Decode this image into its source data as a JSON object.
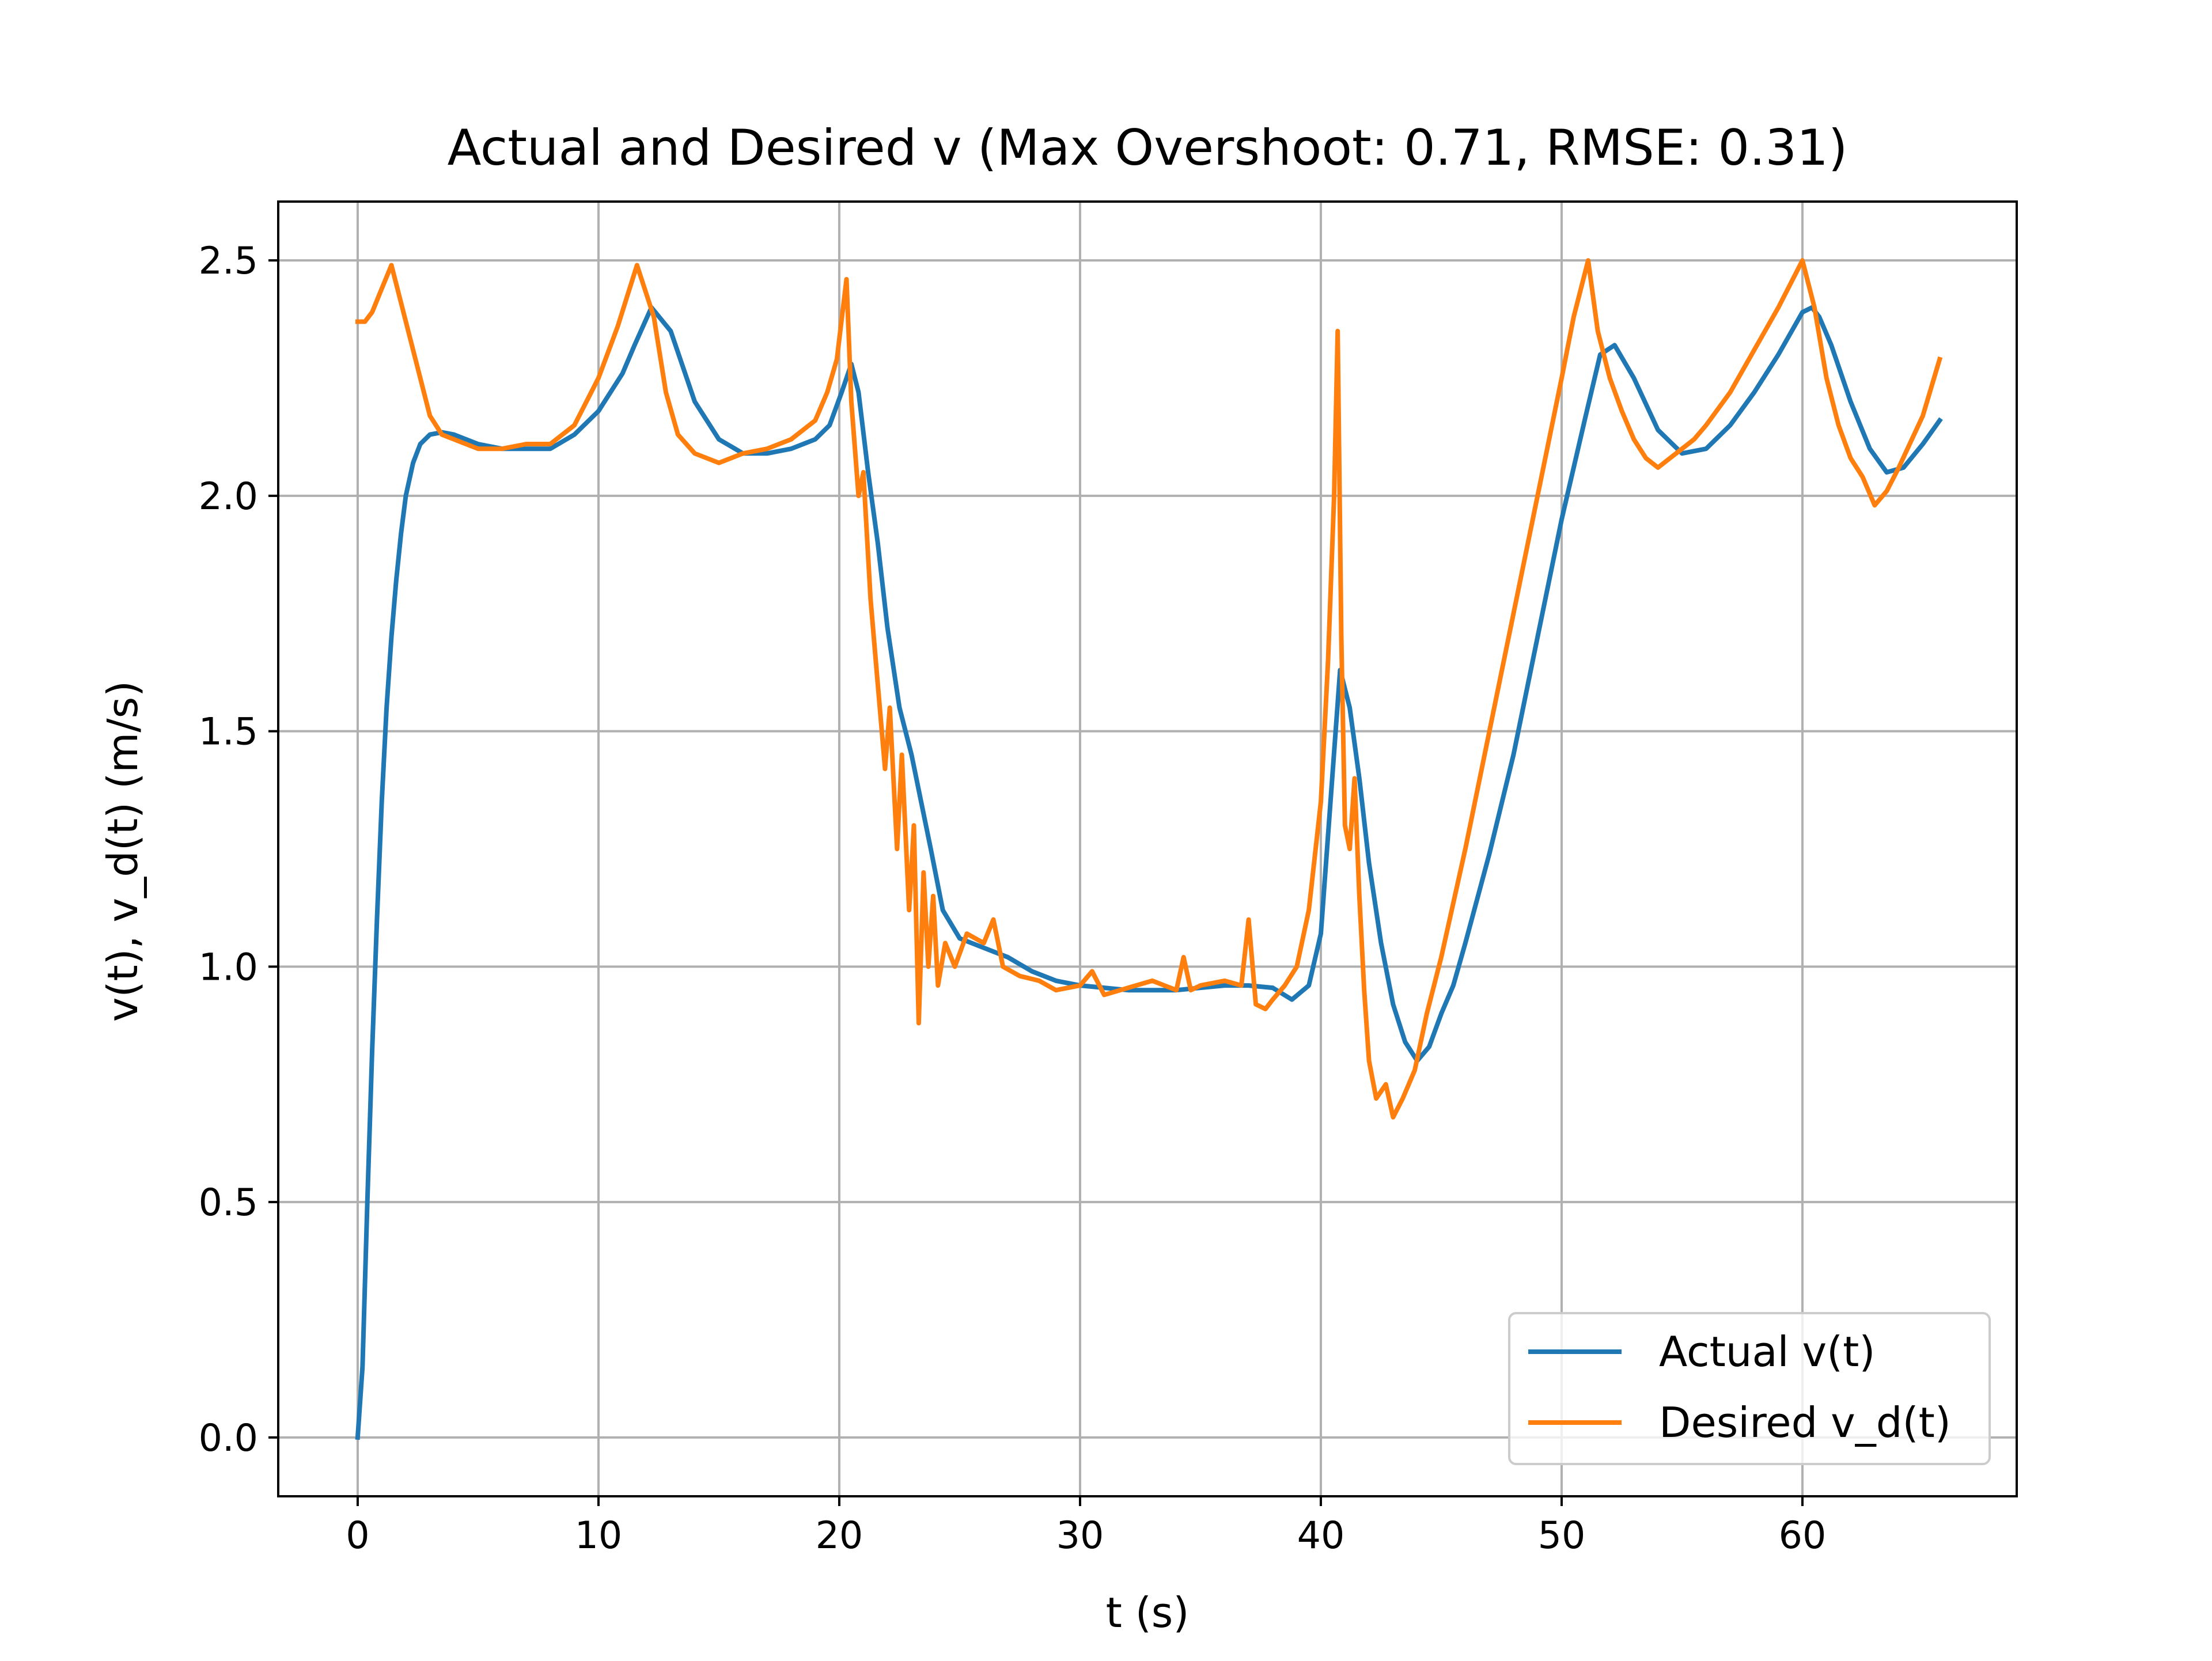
{
  "chart_data": {
    "type": "line",
    "title": "Actual and Desired v (Max Overshoot: 0.71, RMSE: 0.31)",
    "xlabel": "t (s)",
    "ylabel": "v(t), v_d(t) (m/s)",
    "xlim": [
      -3.3,
      68.9
    ],
    "ylim": [
      -0.125,
      2.625
    ],
    "xticks": [
      0,
      10,
      20,
      30,
      40,
      50,
      60
    ],
    "yticks": [
      0.0,
      0.5,
      1.0,
      1.5,
      2.0,
      2.5
    ],
    "xtick_labels": [
      "0",
      "10",
      "20",
      "30",
      "40",
      "50",
      "60"
    ],
    "ytick_labels": [
      "0.0",
      "0.5",
      "1.0",
      "1.5",
      "2.0",
      "2.5"
    ],
    "grid": true,
    "legend_position": "lower-right",
    "series": [
      {
        "name": "Actual v(t)",
        "color": "#1f77b4",
        "x": [
          0,
          0.2,
          0.4,
          0.6,
          0.8,
          1.0,
          1.2,
          1.4,
          1.6,
          1.8,
          2.0,
          2.3,
          2.6,
          3.0,
          3.5,
          4.0,
          5.0,
          6.0,
          7.0,
          8.0,
          9.0,
          10.0,
          11.0,
          11.5,
          12.2,
          13.0,
          14.0,
          15.0,
          16.0,
          17.0,
          18.0,
          19.0,
          19.6,
          20.1,
          20.5,
          20.8,
          21.2,
          21.6,
          22.0,
          22.5,
          23.0,
          23.4,
          23.8,
          24.3,
          25.0,
          26.0,
          27.0,
          28.0,
          29.0,
          30.0,
          31.0,
          32.0,
          33.0,
          34.0,
          35.0,
          36.0,
          37.0,
          38.0,
          38.8,
          39.5,
          40.0,
          40.4,
          40.8,
          41.2,
          41.6,
          42.0,
          42.5,
          43.0,
          43.5,
          44.0,
          44.5,
          45.0,
          45.5,
          46.0,
          47.0,
          48.0,
          49.0,
          50.0,
          51.0,
          51.6,
          52.2,
          53.0,
          54.0,
          55.0,
          56.0,
          57.0,
          58.0,
          59.0,
          60.0,
          60.4,
          60.7,
          61.2,
          62.0,
          62.8,
          63.5,
          64.2,
          65.0,
          65.7
        ],
        "y": [
          0.0,
          0.15,
          0.5,
          0.82,
          1.1,
          1.35,
          1.55,
          1.7,
          1.82,
          1.92,
          2.0,
          2.07,
          2.11,
          2.13,
          2.135,
          2.13,
          2.11,
          2.1,
          2.1,
          2.1,
          2.13,
          2.18,
          2.26,
          2.32,
          2.4,
          2.35,
          2.2,
          2.12,
          2.09,
          2.09,
          2.1,
          2.12,
          2.15,
          2.22,
          2.28,
          2.22,
          2.05,
          1.9,
          1.72,
          1.55,
          1.45,
          1.35,
          1.25,
          1.12,
          1.06,
          1.04,
          1.02,
          0.99,
          0.97,
          0.96,
          0.955,
          0.95,
          0.95,
          0.95,
          0.955,
          0.96,
          0.96,
          0.955,
          0.93,
          0.96,
          1.07,
          1.35,
          1.63,
          1.55,
          1.4,
          1.22,
          1.05,
          0.92,
          0.84,
          0.8,
          0.83,
          0.9,
          0.96,
          1.05,
          1.24,
          1.45,
          1.7,
          1.95,
          2.17,
          2.3,
          2.32,
          2.25,
          2.14,
          2.09,
          2.1,
          2.15,
          2.22,
          2.3,
          2.39,
          2.4,
          2.38,
          2.32,
          2.2,
          2.1,
          2.05,
          2.06,
          2.11,
          2.16
        ]
      },
      {
        "name": "Desired v_d(t)",
        "color": "#ff7f0e",
        "x": [
          0,
          0.3,
          0.6,
          1.0,
          1.4,
          1.8,
          2.2,
          2.6,
          3.0,
          3.5,
          4.0,
          5.0,
          6.0,
          7.0,
          8.0,
          9.0,
          10.0,
          10.8,
          11.6,
          12.3,
          12.8,
          13.3,
          14.0,
          15.0,
          16.0,
          17.0,
          18.0,
          19.0,
          19.5,
          19.9,
          20.3,
          20.5,
          20.8,
          21.0,
          21.3,
          21.6,
          21.9,
          22.1,
          22.4,
          22.6,
          22.9,
          23.1,
          23.3,
          23.5,
          23.7,
          23.9,
          24.1,
          24.4,
          24.8,
          25.3,
          26.0,
          26.4,
          26.8,
          27.5,
          28.3,
          29.0,
          30.0,
          30.5,
          31.0,
          32.0,
          33.0,
          34.0,
          34.3,
          34.6,
          35.0,
          36.0,
          36.7,
          37.0,
          37.3,
          37.7,
          38.0,
          38.5,
          39.0,
          39.5,
          40.0,
          40.3,
          40.55,
          40.7,
          40.85,
          41.0,
          41.2,
          41.4,
          41.6,
          41.8,
          42.0,
          42.3,
          42.7,
          43.0,
          43.4,
          43.9,
          44.4,
          45.0,
          46.0,
          47.0,
          48.0,
          49.0,
          50.0,
          50.5,
          51.1,
          51.5,
          52.0,
          52.5,
          53.0,
          53.5,
          54.0,
          54.5,
          55.0,
          55.5,
          56.0,
          57.0,
          58.0,
          59.0,
          60.0,
          60.5,
          61.0,
          61.5,
          62.0,
          62.5,
          63.0,
          63.5,
          64.0,
          65.0,
          65.7
        ],
        "y": [
          2.37,
          2.37,
          2.39,
          2.44,
          2.49,
          2.41,
          2.33,
          2.25,
          2.17,
          2.13,
          2.12,
          2.1,
          2.1,
          2.11,
          2.11,
          2.15,
          2.25,
          2.36,
          2.49,
          2.38,
          2.22,
          2.13,
          2.09,
          2.07,
          2.09,
          2.1,
          2.12,
          2.16,
          2.22,
          2.29,
          2.46,
          2.2,
          2.0,
          2.05,
          1.78,
          1.6,
          1.42,
          1.55,
          1.25,
          1.45,
          1.12,
          1.3,
          0.88,
          1.2,
          1.0,
          1.15,
          0.96,
          1.05,
          1.0,
          1.07,
          1.05,
          1.1,
          1.0,
          0.98,
          0.97,
          0.95,
          0.96,
          0.99,
          0.94,
          0.955,
          0.97,
          0.95,
          1.02,
          0.95,
          0.96,
          0.97,
          0.96,
          1.1,
          0.92,
          0.91,
          0.93,
          0.96,
          1.0,
          1.12,
          1.35,
          1.65,
          2.0,
          2.35,
          1.7,
          1.3,
          1.25,
          1.4,
          1.15,
          0.95,
          0.8,
          0.72,
          0.75,
          0.68,
          0.72,
          0.78,
          0.9,
          1.02,
          1.25,
          1.5,
          1.75,
          2.0,
          2.25,
          2.38,
          2.5,
          2.35,
          2.25,
          2.18,
          2.12,
          2.08,
          2.06,
          2.08,
          2.1,
          2.12,
          2.15,
          2.22,
          2.31,
          2.4,
          2.5,
          2.4,
          2.25,
          2.15,
          2.08,
          2.04,
          1.98,
          2.01,
          2.06,
          2.17,
          2.29
        ]
      }
    ]
  }
}
